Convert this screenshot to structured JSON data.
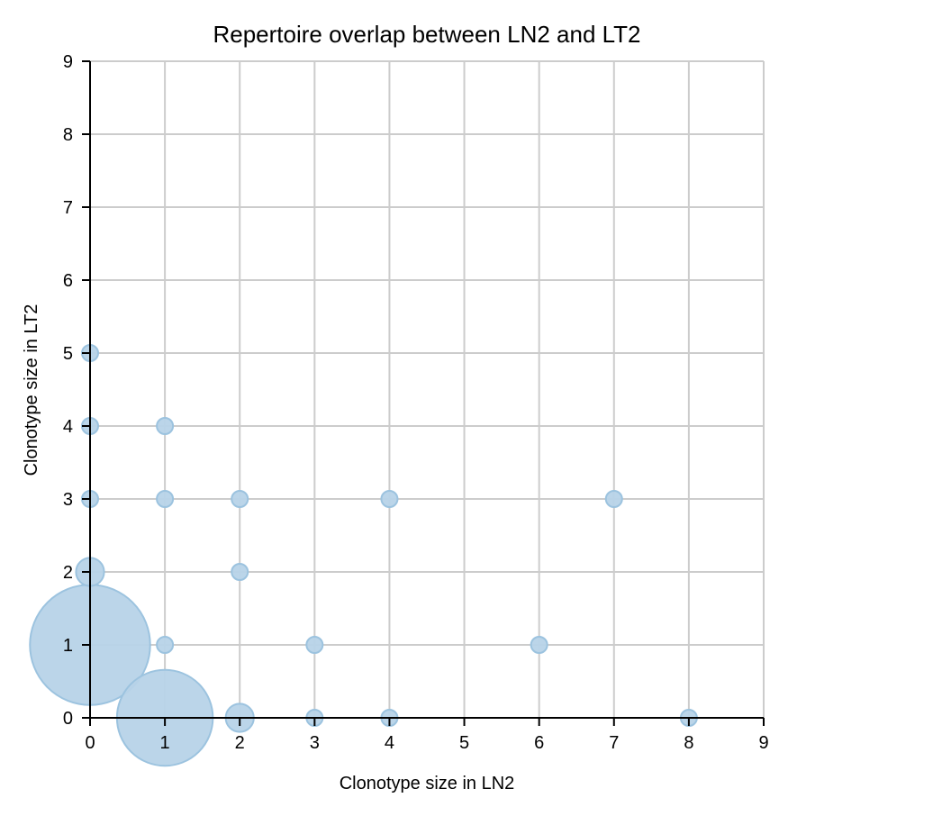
{
  "chart_data": {
    "type": "scatter",
    "title": "Repertoire overlap between LN2 and LT2",
    "xlabel": "Clonotype size in LN2",
    "ylabel": "Clonotype size in LT2",
    "xlim": [
      0,
      9
    ],
    "ylim": [
      0,
      9
    ],
    "xticks": [
      0,
      1,
      2,
      3,
      4,
      5,
      6,
      7,
      8,
      9
    ],
    "yticks": [
      0,
      1,
      2,
      3,
      4,
      5,
      6,
      7,
      8,
      9
    ],
    "grid": true,
    "marker_fill": "#b7d3e8",
    "marker_edge": "#9cc3df",
    "points": [
      {
        "x": 0,
        "y": 1,
        "size": 55
      },
      {
        "x": 1,
        "y": 0,
        "size": 35
      },
      {
        "x": 0,
        "y": 2,
        "size": 3
      },
      {
        "x": 2,
        "y": 0,
        "size": 3
      },
      {
        "x": 0,
        "y": 5,
        "size": 1
      },
      {
        "x": 0,
        "y": 4,
        "size": 1
      },
      {
        "x": 0,
        "y": 3,
        "size": 1
      },
      {
        "x": 1,
        "y": 4,
        "size": 1
      },
      {
        "x": 1,
        "y": 3,
        "size": 1
      },
      {
        "x": 2,
        "y": 3,
        "size": 1
      },
      {
        "x": 4,
        "y": 3,
        "size": 1
      },
      {
        "x": 7,
        "y": 3,
        "size": 1
      },
      {
        "x": 2,
        "y": 2,
        "size": 1
      },
      {
        "x": 1,
        "y": 1,
        "size": 1
      },
      {
        "x": 3,
        "y": 1,
        "size": 1
      },
      {
        "x": 6,
        "y": 1,
        "size": 1
      },
      {
        "x": 3,
        "y": 0,
        "size": 1
      },
      {
        "x": 4,
        "y": 0,
        "size": 1
      },
      {
        "x": 8,
        "y": 0,
        "size": 1
      }
    ]
  }
}
